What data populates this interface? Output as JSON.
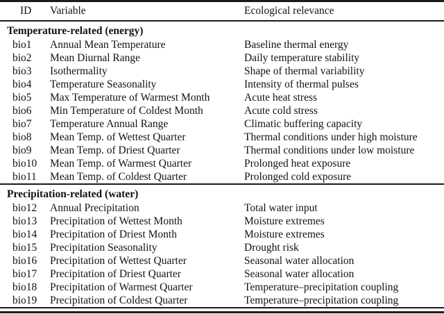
{
  "table": {
    "columns": [
      "ID",
      "Variable",
      "Ecological relevance"
    ],
    "sections": [
      {
        "title": "Temperature-related (energy)",
        "rows": [
          [
            "bio1",
            "Annual Mean Temperature",
            "Baseline thermal energy"
          ],
          [
            "bio2",
            "Mean Diurnal Range",
            "Daily temperature stability"
          ],
          [
            "bio3",
            "Isothermality",
            "Shape of thermal variability"
          ],
          [
            "bio4",
            "Temperature Seasonality",
            "Intensity of thermal pulses"
          ],
          [
            "bio5",
            "Max Temperature of Warmest Month",
            "Acute heat stress"
          ],
          [
            "bio6",
            "Min Temperature of Coldest Month",
            "Acute cold stress"
          ],
          [
            "bio7",
            "Temperature Annual Range",
            "Climatic buffering capacity"
          ],
          [
            "bio8",
            "Mean Temp. of Wettest Quarter",
            "Thermal conditions under high moisture"
          ],
          [
            "bio9",
            "Mean Temp. of Driest Quarter",
            "Thermal conditions under low moisture"
          ],
          [
            "bio10",
            "Mean Temp. of Warmest Quarter",
            "Prolonged heat exposure"
          ],
          [
            "bio11",
            "Mean Temp. of Coldest Quarter",
            "Prolonged cold exposure"
          ]
        ]
      },
      {
        "title": "Precipitation-related (water)",
        "rows": [
          [
            "bio12",
            "Annual Precipitation",
            "Total water input"
          ],
          [
            "bio13",
            "Precipitation of Wettest Month",
            "Moisture extremes"
          ],
          [
            "bio14",
            "Precipitation of Driest Month",
            "Moisture extremes"
          ],
          [
            "bio15",
            "Precipitation Seasonality",
            "Drought risk"
          ],
          [
            "bio16",
            "Precipitation of Wettest Quarter",
            "Seasonal water allocation"
          ],
          [
            "bio17",
            "Precipitation of Driest Quarter",
            "Seasonal water allocation"
          ],
          [
            "bio18",
            "Precipitation of Warmest Quarter",
            "Temperature–precipitation coupling"
          ],
          [
            "bio19",
            "Precipitation of Coldest Quarter",
            "Temperature–precipitation coupling"
          ]
        ]
      }
    ],
    "colors": {
      "rule": "#1a1a1a",
      "text": "#121212",
      "background": "#ffffff"
    }
  }
}
